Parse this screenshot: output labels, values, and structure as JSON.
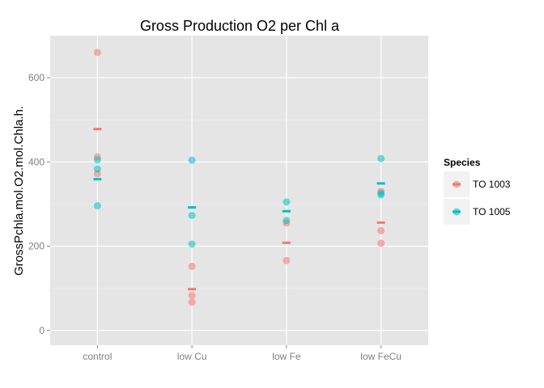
{
  "chart_data": {
    "type": "scatter",
    "title": "Gross Production O2 per Chl a",
    "xlabel": "",
    "ylabel": "GrossPchla.mol.O2.mol.Chla.h.",
    "categories": [
      "control",
      "low Cu",
      "low Fe",
      "low FeCu"
    ],
    "ylim": [
      -35,
      700
    ],
    "yticks": [
      0,
      200,
      400,
      600
    ],
    "grid": true,
    "legend": {
      "title": "Species",
      "position": "right"
    },
    "series": [
      {
        "name": "TO 1003",
        "color": "#F8766D",
        "points": [
          {
            "x": "control",
            "y": 660
          },
          {
            "x": "control",
            "y": 412
          },
          {
            "x": "control",
            "y": 372
          },
          {
            "x": "low Cu",
            "y": 152
          },
          {
            "x": "low Cu",
            "y": 83
          },
          {
            "x": "low Cu",
            "y": 67
          },
          {
            "x": "low Fe",
            "y": 255
          },
          {
            "x": "low Fe",
            "y": 166
          },
          {
            "x": "low FeCu",
            "y": 330
          },
          {
            "x": "low FeCu",
            "y": 237
          },
          {
            "x": "low FeCu",
            "y": 207
          }
        ],
        "means": [
          {
            "x": "control",
            "y": 478
          },
          {
            "x": "low Cu",
            "y": 98
          },
          {
            "x": "low Fe",
            "y": 208
          },
          {
            "x": "low FeCu",
            "y": 256
          }
        ]
      },
      {
        "name": "TO 1005",
        "color": "#00BFC4",
        "points": [
          {
            "x": "control",
            "y": 405
          },
          {
            "x": "control",
            "y": 383
          },
          {
            "x": "control",
            "y": 296
          },
          {
            "x": "low Cu",
            "y": 404
          },
          {
            "x": "low Cu",
            "y": 273
          },
          {
            "x": "low Cu",
            "y": 205
          },
          {
            "x": "low Fe",
            "y": 305
          },
          {
            "x": "low Fe",
            "y": 261
          },
          {
            "x": "low FeCu",
            "y": 408
          },
          {
            "x": "low FeCu",
            "y": 326
          },
          {
            "x": "low FeCu",
            "y": 322
          }
        ],
        "means": [
          {
            "x": "control",
            "y": 359
          },
          {
            "x": "low Cu",
            "y": 292
          },
          {
            "x": "low Fe",
            "y": 283
          },
          {
            "x": "low FeCu",
            "y": 349
          }
        ]
      }
    ]
  }
}
